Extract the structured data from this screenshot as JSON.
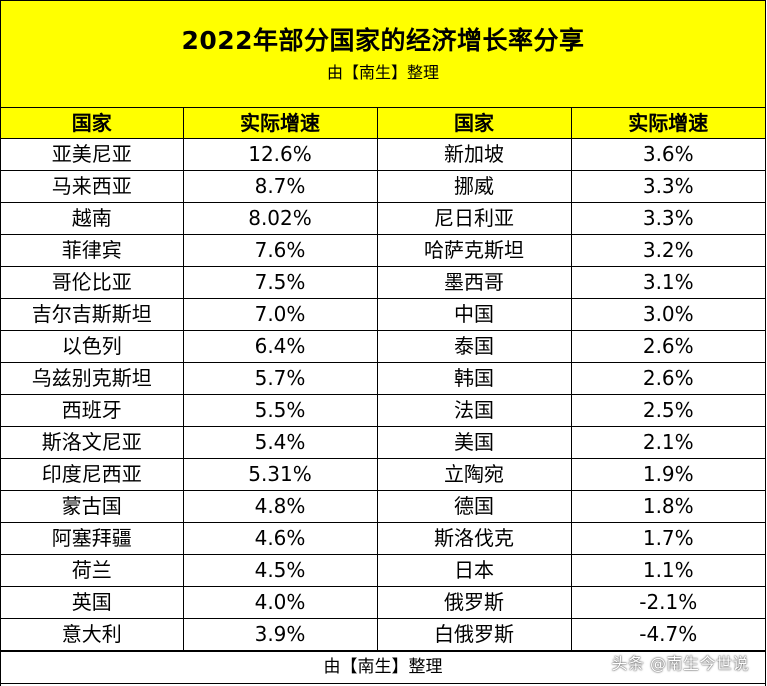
{
  "title": "2022年部分国家的经济增长率分享",
  "subtitle": "由【南生】整理",
  "headers": [
    "国家",
    "实际增速",
    "国家",
    "实际增速"
  ],
  "rows": [
    [
      "亚美尼亚",
      "12.6%",
      "新加坡",
      "3.6%"
    ],
    [
      "马来西亚",
      "8.7%",
      "挪威",
      "3.3%"
    ],
    [
      "越南",
      "8.02%",
      "尼日利亚",
      "3.3%"
    ],
    [
      "菲律宾",
      "7.6%",
      "哈萨克斯坦",
      "3.2%"
    ],
    [
      "哥伦比亚",
      "7.5%",
      "墨西哥",
      "3.1%"
    ],
    [
      "吉尔吉斯斯坦",
      "7.0%",
      "中国",
      "3.0%"
    ],
    [
      "以色列",
      "6.4%",
      "泰国",
      "2.6%"
    ],
    [
      "乌兹别克斯坦",
      "5.7%",
      "韩国",
      "2.6%"
    ],
    [
      "西班牙",
      "5.5%",
      "法国",
      "2.5%"
    ],
    [
      "斯洛文尼亚",
      "5.4%",
      "美国",
      "2.1%"
    ],
    [
      "印度尼西亚",
      "5.31%",
      "立陶宛",
      "1.9%"
    ],
    [
      "蒙古国",
      "4.8%",
      "德国",
      "1.8%"
    ],
    [
      "阿塞拜疆",
      "4.6%",
      "斯洛伐克",
      "1.7%"
    ],
    [
      "荷兰",
      "4.5%",
      "日本",
      "1.1%"
    ],
    [
      "英国",
      "4.0%",
      "俄罗斯",
      "-2.1%"
    ],
    [
      "意大利",
      "3.9%",
      "白俄罗斯",
      "-4.7%"
    ]
  ],
  "footer": "由【南生】整理",
  "watermark": "头条 @南生今世说",
  "colors": {
    "header_bg": "#ffff00",
    "border": "#000000"
  }
}
